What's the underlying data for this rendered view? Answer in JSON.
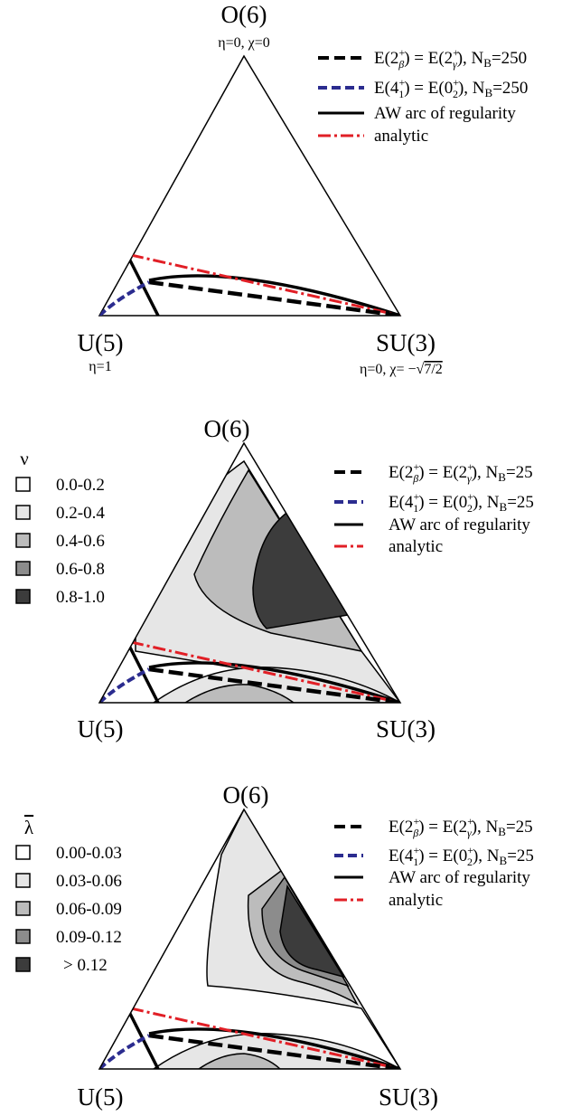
{
  "vertices": {
    "top": "O(6)",
    "left": "U(5)",
    "right": "SU(3)"
  },
  "vertex_params": {
    "top": "η=0, χ=0",
    "left": "η=1",
    "right_prefix": "η=0, χ= −",
    "right_sqrt": "√",
    "right_radicand": "7/2"
  },
  "legend": {
    "items": [
      {
        "style": "dashed-black",
        "color": "#000000",
        "lhs_E": "E(2",
        "lhs_sub": "β",
        "rhs_E": ") = E(2",
        "rhs_sub": "γ",
        "nb": "), N",
        "nb_sub": "B",
        "nb_val": "=250"
      },
      {
        "style": "dashed-blue",
        "color": "#2b2c8f",
        "lhs_E": "E(4",
        "lhs_sub": "1",
        "rhs_E": ") = E(0",
        "rhs_sub": "2",
        "nb": "), N",
        "nb_sub": "B",
        "nb_val": "=250"
      },
      {
        "style": "solid-black",
        "color": "#000000",
        "label": "AW arc of regularity"
      },
      {
        "style": "dashdot-red",
        "color": "#e11f26",
        "label": "analytic"
      }
    ],
    "nb_val_truncated": "=25",
    "superscript": "+"
  },
  "panel2": {
    "scale_title": "ν",
    "bins": [
      "0.0-0.2",
      "0.2-0.4",
      "0.4-0.6",
      "0.6-0.8",
      "0.8-1.0"
    ]
  },
  "panel3": {
    "scale_title": "λ",
    "bins": [
      "0.00-0.03",
      "0.03-0.06",
      "0.06-0.09",
      "0.09-0.12",
      "> 0.12"
    ]
  },
  "colors": {
    "bin1": "#ffffff",
    "bin2": "#e6e6e6",
    "bin3": "#bcbcbc",
    "bin4": "#8c8c8c",
    "bin5": "#3c3c3c",
    "blue": "#2b2c8f",
    "red": "#e11f26"
  }
}
